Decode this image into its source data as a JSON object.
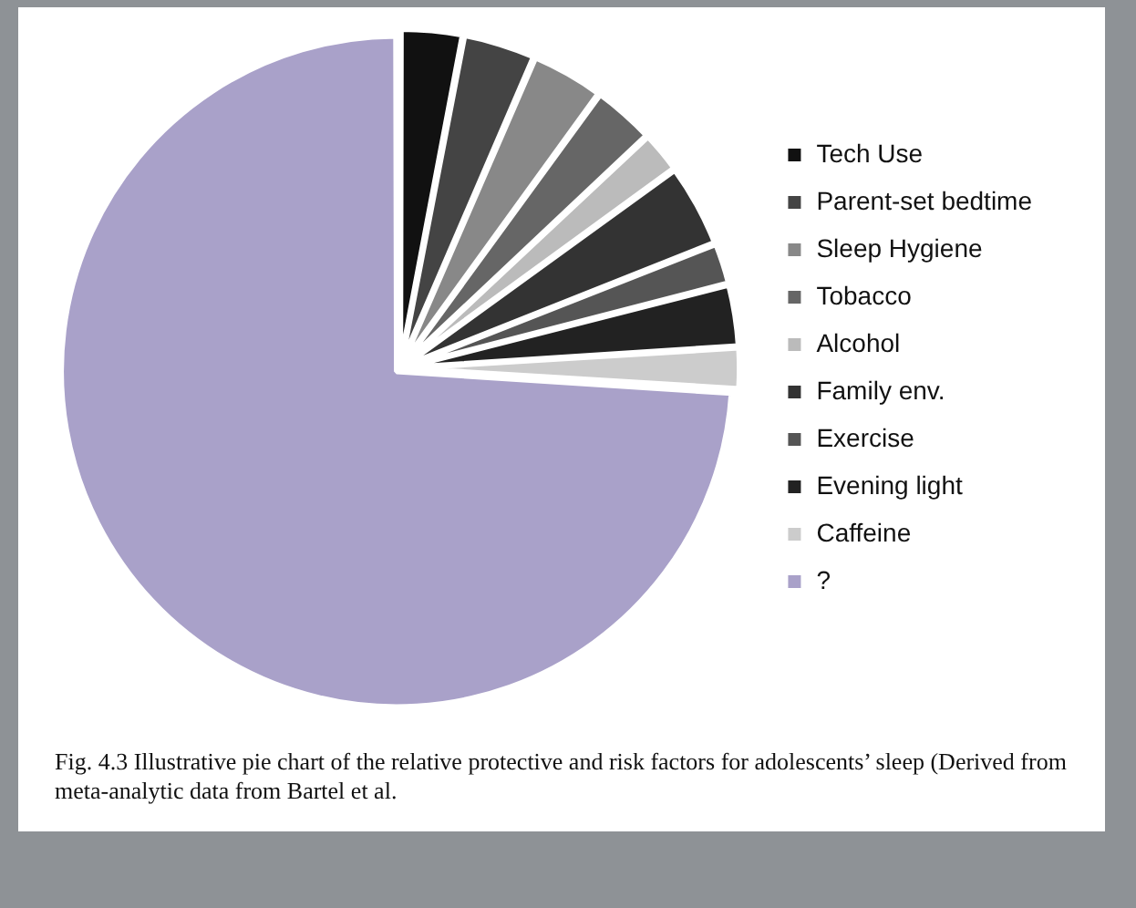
{
  "chart_data": {
    "type": "pie",
    "categories": [
      "Tech Use",
      "Parent-set bedtime",
      "Sleep Hygiene",
      "Tobacco",
      "Alcohol",
      "Family env.",
      "Exercise",
      "Evening light",
      "Caffeine",
      "?"
    ],
    "values": [
      3,
      3.5,
      3.5,
      3,
      2,
      4,
      2,
      3,
      2,
      74
    ],
    "colors": [
      "#111111",
      "#444444",
      "#888888",
      "#666666",
      "#bbbbbb",
      "#333333",
      "#555555",
      "#222222",
      "#cccccc",
      "#a9a1c9"
    ],
    "legend": "right",
    "annotations": [
      "Fig. 4.3 Illustrative pie chart of the relative protective and risk factors for adolescents’ sleep (Derived from meta-analytic data from Bartel et al."
    ]
  }
}
